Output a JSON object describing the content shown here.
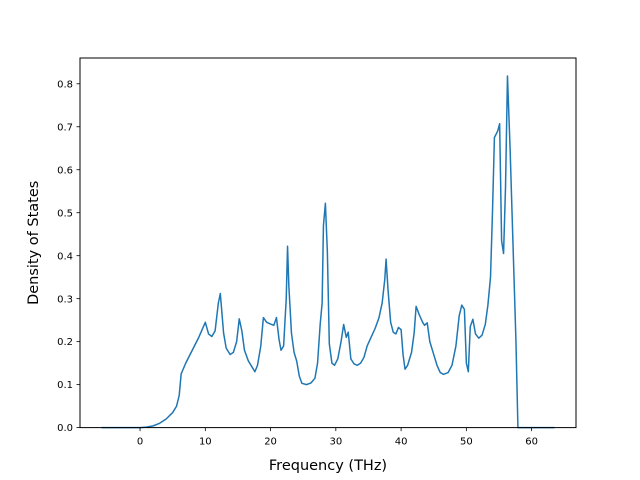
{
  "chart_data": {
    "type": "line",
    "title": "",
    "xlabel": "Frequency (THz)",
    "ylabel": "Density of States",
    "xlim": [
      -9.2,
      66.8
    ],
    "ylim": [
      0.0,
      0.86
    ],
    "xticks": [
      0,
      10,
      20,
      30,
      40,
      50,
      60
    ],
    "yticks": [
      0.0,
      0.1,
      0.2,
      0.3,
      0.4,
      0.5,
      0.6,
      0.7,
      0.8
    ],
    "grid": false,
    "legend": "none",
    "series": [
      {
        "color": "#1f77b4",
        "points": [
          [
            -5.9,
            0.0
          ],
          [
            -2.0,
            0.0
          ],
          [
            0.0,
            0.0
          ],
          [
            1.0,
            0.001
          ],
          [
            2.0,
            0.004
          ],
          [
            3.0,
            0.01
          ],
          [
            4.0,
            0.02
          ],
          [
            5.0,
            0.035
          ],
          [
            5.6,
            0.05
          ],
          [
            6.0,
            0.075
          ],
          [
            6.3,
            0.125
          ],
          [
            7.0,
            0.15
          ],
          [
            8.0,
            0.18
          ],
          [
            9.0,
            0.21
          ],
          [
            10.0,
            0.245
          ],
          [
            10.5,
            0.218
          ],
          [
            11.0,
            0.212
          ],
          [
            11.5,
            0.225
          ],
          [
            12.0,
            0.29
          ],
          [
            12.3,
            0.312
          ],
          [
            12.8,
            0.22
          ],
          [
            13.2,
            0.185
          ],
          [
            13.8,
            0.17
          ],
          [
            14.3,
            0.175
          ],
          [
            14.8,
            0.2
          ],
          [
            15.2,
            0.253
          ],
          [
            15.6,
            0.225
          ],
          [
            16.0,
            0.18
          ],
          [
            16.6,
            0.155
          ],
          [
            17.2,
            0.14
          ],
          [
            17.6,
            0.13
          ],
          [
            18.0,
            0.145
          ],
          [
            18.5,
            0.19
          ],
          [
            18.9,
            0.256
          ],
          [
            19.4,
            0.245
          ],
          [
            20.0,
            0.241
          ],
          [
            20.5,
            0.238
          ],
          [
            20.9,
            0.256
          ],
          [
            21.3,
            0.205
          ],
          [
            21.6,
            0.18
          ],
          [
            22.0,
            0.19
          ],
          [
            22.4,
            0.3
          ],
          [
            22.6,
            0.422
          ],
          [
            22.8,
            0.33
          ],
          [
            23.2,
            0.22
          ],
          [
            23.6,
            0.175
          ],
          [
            24.0,
            0.155
          ],
          [
            24.4,
            0.12
          ],
          [
            24.8,
            0.103
          ],
          [
            25.5,
            0.1
          ],
          [
            26.2,
            0.104
          ],
          [
            26.8,
            0.115
          ],
          [
            27.2,
            0.15
          ],
          [
            27.6,
            0.24
          ],
          [
            27.9,
            0.29
          ],
          [
            28.1,
            0.47
          ],
          [
            28.4,
            0.522
          ],
          [
            28.7,
            0.41
          ],
          [
            29.0,
            0.195
          ],
          [
            29.4,
            0.15
          ],
          [
            29.8,
            0.145
          ],
          [
            30.3,
            0.16
          ],
          [
            30.8,
            0.2
          ],
          [
            31.2,
            0.24
          ],
          [
            31.6,
            0.21
          ],
          [
            31.9,
            0.222
          ],
          [
            32.3,
            0.16
          ],
          [
            32.8,
            0.148
          ],
          [
            33.3,
            0.145
          ],
          [
            33.8,
            0.15
          ],
          [
            34.3,
            0.163
          ],
          [
            34.8,
            0.19
          ],
          [
            35.4,
            0.21
          ],
          [
            36.0,
            0.23
          ],
          [
            36.6,
            0.255
          ],
          [
            37.1,
            0.29
          ],
          [
            37.5,
            0.345
          ],
          [
            37.7,
            0.392
          ],
          [
            38.0,
            0.32
          ],
          [
            38.4,
            0.245
          ],
          [
            38.8,
            0.222
          ],
          [
            39.2,
            0.218
          ],
          [
            39.6,
            0.233
          ],
          [
            40.0,
            0.228
          ],
          [
            40.3,
            0.17
          ],
          [
            40.6,
            0.136
          ],
          [
            41.0,
            0.145
          ],
          [
            41.6,
            0.175
          ],
          [
            42.0,
            0.22
          ],
          [
            42.3,
            0.282
          ],
          [
            42.8,
            0.262
          ],
          [
            43.3,
            0.245
          ],
          [
            43.6,
            0.238
          ],
          [
            44.0,
            0.244
          ],
          [
            44.4,
            0.2
          ],
          [
            45.0,
            0.17
          ],
          [
            45.5,
            0.145
          ],
          [
            46.0,
            0.128
          ],
          [
            46.5,
            0.124
          ],
          [
            47.2,
            0.128
          ],
          [
            47.8,
            0.145
          ],
          [
            48.4,
            0.19
          ],
          [
            48.9,
            0.26
          ],
          [
            49.3,
            0.285
          ],
          [
            49.7,
            0.275
          ],
          [
            50.0,
            0.15
          ],
          [
            50.3,
            0.13
          ],
          [
            50.6,
            0.235
          ],
          [
            51.0,
            0.252
          ],
          [
            51.4,
            0.218
          ],
          [
            51.9,
            0.208
          ],
          [
            52.4,
            0.215
          ],
          [
            52.9,
            0.24
          ],
          [
            53.3,
            0.285
          ],
          [
            53.7,
            0.35
          ],
          [
            54.0,
            0.5
          ],
          [
            54.3,
            0.675
          ],
          [
            54.8,
            0.69
          ],
          [
            55.1,
            0.707
          ],
          [
            55.4,
            0.435
          ],
          [
            55.7,
            0.405
          ],
          [
            56.0,
            0.56
          ],
          [
            56.3,
            0.818
          ],
          [
            56.7,
            0.65
          ],
          [
            57.2,
            0.4
          ],
          [
            57.6,
            0.2
          ],
          [
            57.9,
            0.0
          ],
          [
            59.0,
            0.0
          ],
          [
            61.0,
            0.0
          ],
          [
            63.5,
            0.0
          ]
        ]
      }
    ]
  }
}
